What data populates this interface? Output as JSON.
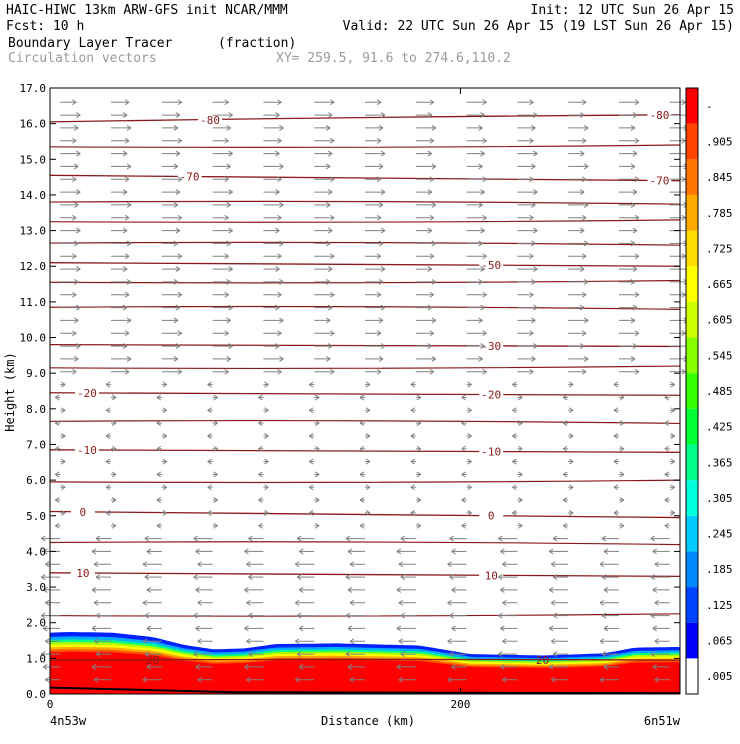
{
  "header": {
    "left_line1": "HAIC-HIWC 13km ARW-GFS init   NCAR/MMM",
    "left_line2": "Fcst:   10 h",
    "right_line1": "Init: 12 UTC Sun 26 Apr 15",
    "right_line2": "Valid: 22 UTC Sun 26 Apr 15 (19 LST Sun 26 Apr 15)",
    "field_title": "Boundary Layer Tracer",
    "field_units": "(fraction)",
    "vector_title": "Circulation vectors",
    "xy_text": "XY= 259.5, 91.6 to 274.6,110.2"
  },
  "chart_data": {
    "type": "heatmap",
    "title": "Boundary Layer Tracer",
    "units": "(fraction)",
    "ylabel": "Height (km)",
    "xlabel": "Distance (km)",
    "ylim": [
      0,
      17
    ],
    "xlim": [
      0,
      307
    ],
    "y_ticks": [
      "0.0",
      "1.0",
      "2.0",
      "3.0",
      "4.0",
      "5.0",
      "6.0",
      "7.0",
      "8.0",
      "9.0",
      "10.0",
      "11.0",
      "12.0",
      "13.0",
      "14.0",
      "15.0",
      "16.0",
      "17.0"
    ],
    "x_ticks": [
      {
        "value": 0,
        "label": "0"
      },
      {
        "value": 200,
        "label": "200"
      }
    ],
    "x_endpoints": {
      "left": "4n53w",
      "right": "6n51w"
    },
    "colorbar": {
      "labels": [
        ".005",
        ".065",
        ".125",
        ".185",
        ".245",
        ".305",
        ".365",
        ".425",
        ".485",
        ".545",
        ".605",
        ".665",
        ".725",
        ".785",
        ".845",
        ".905",
        "-"
      ],
      "colors": [
        "#ffffff",
        "#0000ff",
        "#0044ff",
        "#0088ff",
        "#00ccff",
        "#00ffdd",
        "#00ff88",
        "#00ff33",
        "#33ff00",
        "#88ff00",
        "#ccff00",
        "#ffff00",
        "#ffdd00",
        "#ffaa00",
        "#ff7700",
        "#ff4400",
        "#ff0000"
      ]
    },
    "tracer_top_km": [
      {
        "x": 0,
        "top": 1.72
      },
      {
        "x": 10,
        "top": 1.74
      },
      {
        "x": 30,
        "top": 1.72
      },
      {
        "x": 50,
        "top": 1.6
      },
      {
        "x": 65,
        "top": 1.38
      },
      {
        "x": 80,
        "top": 1.25
      },
      {
        "x": 95,
        "top": 1.28
      },
      {
        "x": 110,
        "top": 1.4
      },
      {
        "x": 140,
        "top": 1.42
      },
      {
        "x": 180,
        "top": 1.36
      },
      {
        "x": 205,
        "top": 1.12
      },
      {
        "x": 240,
        "top": 1.08
      },
      {
        "x": 270,
        "top": 1.14
      },
      {
        "x": 285,
        "top": 1.3
      },
      {
        "x": 307,
        "top": 1.32
      }
    ],
    "contours": [
      {
        "label": "20",
        "label_x": [
          50,
          240
        ],
        "y_left": 0.95,
        "y_right": 0.95
      },
      {
        "label": "10",
        "label_x": [
          16,
          215
        ],
        "y_left": 3.4,
        "y_right": 3.3
      },
      {
        "label": "0",
        "label_x": [
          16,
          215
        ],
        "y_left": 5.12,
        "y_right": 4.95
      },
      {
        "label": "-10",
        "label_x": [
          18,
          215
        ],
        "y_left": 6.85,
        "y_right": 6.78
      },
      {
        "label": "-20",
        "label_x": [
          18,
          215
        ],
        "y_left": 8.45,
        "y_right": 8.38
      },
      {
        "label": "-30",
        "label_x": [
          215
        ],
        "y_left": 9.8,
        "y_right": 9.75
      },
      {
        "label": "-50",
        "label_x": [
          215
        ],
        "y_left": 12.1,
        "y_right": 12.0
      },
      {
        "label": "-70",
        "label_x": [
          68,
          297
        ],
        "y_left": 14.55,
        "y_right": 14.4
      },
      {
        "label": "-80",
        "label_x": [
          78,
          297
        ],
        "y_left": 16.05,
        "y_right": 16.25
      }
    ],
    "unlabeled_contour_km": [
      2.2,
      4.25,
      5.95,
      7.65,
      9.15,
      10.85,
      11.55,
      12.65,
      13.25,
      13.8,
      15.35
    ],
    "vectors": {
      "direction_by_height": [
        {
          "z_min": 0,
          "z_max": 4.5,
          "dir": "west"
        },
        {
          "z_min": 4.5,
          "z_max": 9.0,
          "dir": "weak"
        },
        {
          "z_min": 9.0,
          "z_max": 17,
          "dir": "east"
        }
      ]
    }
  }
}
